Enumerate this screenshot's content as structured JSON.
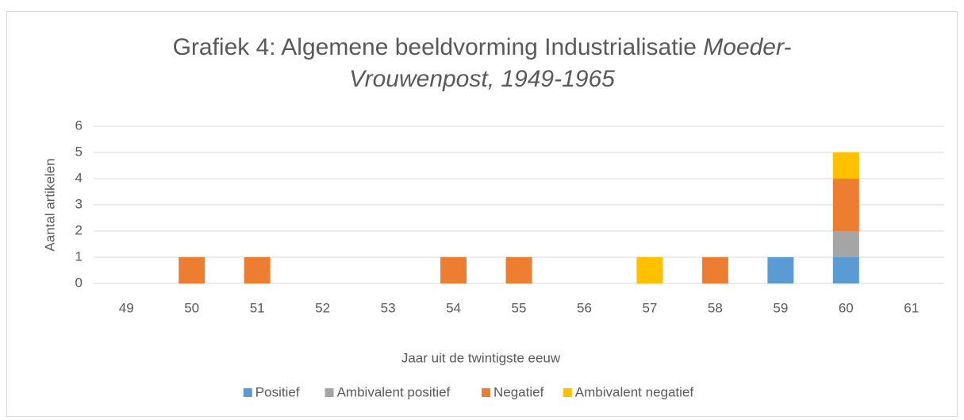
{
  "chart_data": {
    "type": "stacked-bar",
    "title": "Grafiek 4: Algemene beeldvorming Industrialisatie",
    "title_italic": "Moeder-Vrouwenpost, 1949-1965",
    "x_label": "Jaar uit de twintigste eeuw",
    "y_label": "Aantal artikelen",
    "categories": [
      "49",
      "50",
      "51",
      "52",
      "53",
      "54",
      "55",
      "56",
      "57",
      "58",
      "59",
      "60",
      "61"
    ],
    "series": [
      {
        "name": "Positief",
        "color": "#5b9bd5",
        "values": [
          0,
          0,
          0,
          0,
          0,
          0,
          0,
          0,
          0,
          0,
          1,
          1,
          0
        ]
      },
      {
        "name": "Ambivalent positief",
        "color": "#a5a5a5",
        "values": [
          0,
          0,
          0,
          0,
          0,
          0,
          0,
          0,
          0,
          0,
          0,
          1,
          0
        ]
      },
      {
        "name": "Negatief",
        "color": "#ed7d31",
        "values": [
          0,
          1,
          1,
          0,
          0,
          1,
          1,
          0,
          0,
          1,
          0,
          2,
          0
        ]
      },
      {
        "name": "Ambivalent negatief",
        "color": "#ffc000",
        "values": [
          0,
          0,
          0,
          0,
          0,
          0,
          0,
          0,
          1,
          0,
          0,
          1,
          0
        ]
      }
    ],
    "ylim": [
      0,
      6
    ],
    "yticks": [
      0,
      1,
      2,
      3,
      4,
      5,
      6
    ],
    "grid": true,
    "legend": "bottom"
  }
}
